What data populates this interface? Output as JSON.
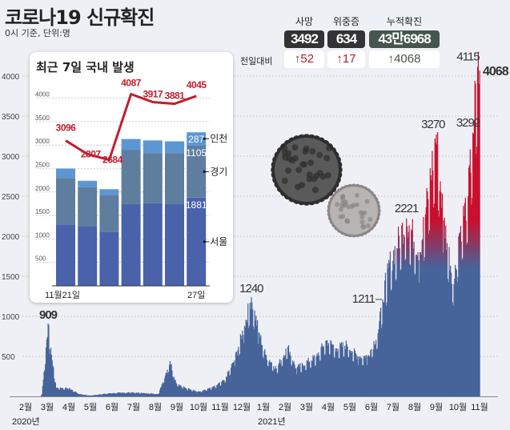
{
  "header": {
    "title": "코로나19 신규확진",
    "subtitle": "0시 기준, 단위:명"
  },
  "stats": {
    "compare_label": "전일대비",
    "items": [
      {
        "label": "사망",
        "value": "3492",
        "delta": "↑52",
        "box_color": "#333333",
        "delta_color": "#b01c2e"
      },
      {
        "label": "위중증",
        "value": "634",
        "delta": "↑17",
        "box_color": "#333333",
        "delta_color": "#b01c2e"
      },
      {
        "label": "누적확진",
        "value": "43만6968",
        "delta": "↑4068",
        "box_color": "#46554d",
        "delta_color": "#46554d"
      }
    ]
  },
  "chart_data": [
    {
      "type": "bar",
      "ylim": [
        0,
        4000
      ],
      "yticks": [
        500,
        1000,
        1500,
        2000,
        2500,
        3000,
        3500,
        4000
      ],
      "xtick_labels": [
        "2월",
        "3월",
        "4월",
        "5월",
        "6월",
        "7월",
        "8월",
        "9월",
        "10월",
        "11월",
        "12월",
        "1월",
        "2월",
        "3월",
        "4월",
        "5월",
        "6월",
        "7월",
        "8월",
        "9월",
        "10월",
        "11월"
      ],
      "year_labels": [
        {
          "label": "2020년",
          "month_index": 0
        },
        {
          "label": "2021년",
          "month_index": 11
        }
      ],
      "grid": true,
      "colors": {
        "base": "#46639a",
        "high": "#c8102e"
      },
      "series_anchors": [
        [
          "2020-02-18",
          0
        ],
        [
          "2020-02-20",
          30
        ],
        [
          "2020-02-29",
          909
        ],
        [
          "2020-03-05",
          520
        ],
        [
          "2020-03-12",
          110
        ],
        [
          "2020-03-31",
          100
        ],
        [
          "2020-04-15",
          30
        ],
        [
          "2020-05-01",
          10
        ],
        [
          "2020-05-15",
          25
        ],
        [
          "2020-06-01",
          40
        ],
        [
          "2020-06-15",
          45
        ],
        [
          "2020-07-01",
          50
        ],
        [
          "2020-07-20",
          40
        ],
        [
          "2020-08-10",
          30
        ],
        [
          "2020-08-15",
          150
        ],
        [
          "2020-08-27",
          441
        ],
        [
          "2020-09-05",
          170
        ],
        [
          "2020-09-20",
          100
        ],
        [
          "2020-10-10",
          60
        ],
        [
          "2020-10-31",
          120
        ],
        [
          "2020-11-15",
          200
        ],
        [
          "2020-11-30",
          450
        ],
        [
          "2020-12-15",
          880
        ],
        [
          "2020-12-25",
          1240
        ],
        [
          "2021-01-05",
          800
        ],
        [
          "2021-01-15",
          520
        ],
        [
          "2021-01-31",
          350
        ],
        [
          "2021-02-17",
          620
        ],
        [
          "2021-03-01",
          350
        ],
        [
          "2021-03-31",
          500
        ],
        [
          "2021-04-15",
          700
        ],
        [
          "2021-04-30",
          600
        ],
        [
          "2021-05-15",
          650
        ],
        [
          "2021-05-31",
          500
        ],
        [
          "2021-06-15",
          500
        ],
        [
          "2021-06-30",
          790
        ],
        [
          "2021-07-07",
          1211
        ],
        [
          "2021-07-15",
          1600
        ],
        [
          "2021-08-11",
          2221
        ],
        [
          "2021-08-31",
          1800
        ],
        [
          "2021-09-24",
          3270
        ],
        [
          "2021-10-05",
          2200
        ],
        [
          "2021-10-20",
          1400
        ],
        [
          "2021-10-27",
          2000
        ],
        [
          "2021-11-10",
          2500
        ],
        [
          "2021-11-17",
          3292
        ],
        [
          "2021-11-24",
          4115
        ],
        [
          "2021-11-26",
          3900
        ],
        [
          "2021-11-27",
          4068
        ]
      ],
      "annotations": [
        {
          "date": "2020-02-29",
          "value": 909,
          "label": "909"
        },
        {
          "date": "2020-12-25",
          "value": 1240,
          "label": "1240"
        },
        {
          "date": "2021-07-07",
          "value": 1211,
          "label": "1211"
        },
        {
          "date": "2021-08-11",
          "value": 2221,
          "label": "2221"
        },
        {
          "date": "2021-09-24",
          "value": 3270,
          "label": "3270"
        },
        {
          "date": "2021-11-17",
          "value": 3292,
          "label": "3292"
        },
        {
          "date": "2021-11-24",
          "value": 4115,
          "label": "4115"
        },
        {
          "date": "2021-11-27",
          "value": 4068,
          "label": "4068"
        }
      ]
    },
    {
      "type": "bar",
      "title": "최근 7일 국내 발생",
      "ylim": [
        0,
        4000
      ],
      "yticks": [
        500,
        1000,
        1500,
        2000,
        2500,
        3000,
        3500,
        4000
      ],
      "x_labels": [
        "11월21일",
        "",
        "",
        "",
        "",
        "",
        "27일"
      ],
      "stacked": true,
      "series": [
        {
          "name": "서울",
          "values": [
            1310,
            1270,
            1150,
            1740,
            1760,
            1740,
            1881
          ],
          "color": "#4a62aa"
        },
        {
          "name": "경기",
          "values": [
            990,
            830,
            790,
            1160,
            1070,
            1090,
            1105
          ],
          "color": "#5f7d9e"
        },
        {
          "name": "인천",
          "values": [
            200,
            140,
            120,
            230,
            270,
            250,
            287
          ],
          "color": "#5d97d3"
        }
      ],
      "segment_labels": [
        "1881",
        "1105",
        "287"
      ],
      "line": {
        "values": [
          3096,
          2807,
          2684,
          4087,
          3917,
          3881,
          4045
        ],
        "color": "#c01f2f"
      }
    }
  ]
}
